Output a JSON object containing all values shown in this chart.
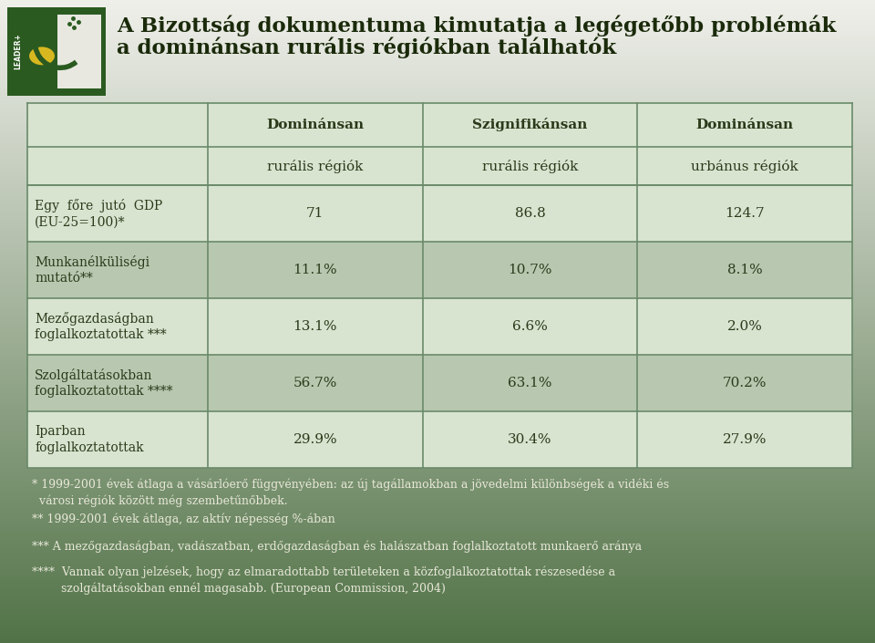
{
  "title_line1": "A Bizottság dokumentuma kimutatja a legégetőbb problémák",
  "title_line2": "a dominánsan rurális régiókban találhatók",
  "bg_top": "#f0f0e8",
  "bg_bottom": "#5a7a50",
  "table_bg_light": "#d8e4d0",
  "table_bg_dark": "#b8c8b0",
  "border_color": "#6a8a6a",
  "col_headers_line1": [
    "Dominánsan",
    "Szignifikánsan",
    "Dominánsan"
  ],
  "col_headers_line2": [
    "rurális régiók",
    "rurális régiók",
    "urbánus régiók"
  ],
  "row_labels": [
    "Egy  főre  jutó  GDP\n(EU-25=100)*",
    "Munkanélküliségi\nmutató**",
    "Mezőgazdaságban\nfoglalkoztatottak ***",
    "Szolgáltatásokban\nfoglalkoztatottak ****",
    "Iparban\nfoglalkoztatottak"
  ],
  "data": [
    [
      "71",
      "86.8",
      "124.7"
    ],
    [
      "11.1%",
      "10.7%",
      "8.1%"
    ],
    [
      "13.1%",
      "6.6%",
      "2.0%"
    ],
    [
      "56.7%",
      "63.1%",
      "70.2%"
    ],
    [
      "29.9%",
      "30.4%",
      "27.9%"
    ]
  ],
  "footnotes": [
    "* 1999-2001 évek átlaga a vásárlóerő függvényében: az új tagállamokban a jövedelmi különbségek a vidéki és városi régiók között még szembetűnőbbek.",
    "** 1999-2001 évek átlaga, az aktív népesség %-ában",
    "*** A mezőgazdaságban, vadászatban, erdőgazdaságban és halászatban foglalkoztatott munkaerő aránya",
    "**** Vannak olyan jelzések, hogy az elmaradottabb területeken a közfoglalkoztatottak részesedése a szolgáltatásokban ennél magasabb. (European Commission, 2004)"
  ],
  "text_color_dark": "#2a3a1a",
  "text_color_light": "#e8e8d8",
  "title_color": "#1a2a0a",
  "footnote_color": "#e8e8d8",
  "logo_dark_green": "#2a5a20",
  "logo_light": "#e8e8e0",
  "logo_yellow": "#d8b820"
}
